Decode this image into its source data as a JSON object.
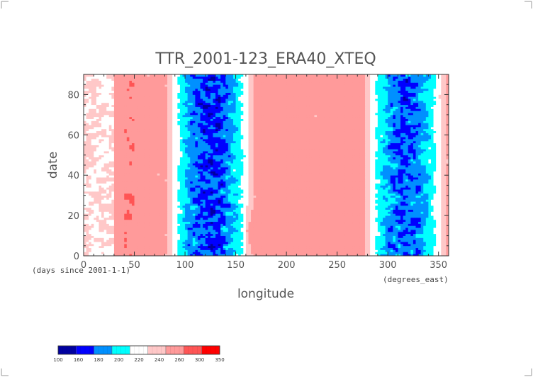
{
  "chart_data": {
    "type": "heatmap",
    "title": "TTR_2001-123_ERA40_XTEQ",
    "xlabel": "longitude",
    "ylabel": "date",
    "x_units": "(degrees_east)",
    "y_units": "(days since 2001-1-1)",
    "xlim": [
      0,
      360
    ],
    "ylim": [
      0,
      90
    ],
    "x_ticks": [
      "0",
      "50",
      "100",
      "150",
      "200",
      "250",
      "300",
      "350"
    ],
    "x_tick_values": [
      0,
      50,
      100,
      150,
      200,
      250,
      300,
      350
    ],
    "y_ticks": [
      "0",
      "20",
      "40",
      "60",
      "80"
    ],
    "y_tick_values": [
      0,
      20,
      40,
      60,
      80
    ],
    "colorbar": {
      "labels": [
        "100",
        "160",
        "180",
        "200",
        "220",
        "240",
        "260",
        "300",
        "350"
      ],
      "colors": [
        "#0000a0",
        "#0000ff",
        "#0090ff",
        "#00ffff",
        "#ffffff",
        "#ffc8c8",
        "#ff9a9a",
        "#ff5555",
        "#ff0000"
      ]
    },
    "pattern": {
      "background_value": 270,
      "convective_bands": [
        {
          "lon_range": [
            80,
            170
          ],
          "typical_value": 190
        },
        {
          "lon_range": [
            275,
            360
          ],
          "typical_value": 195
        }
      ],
      "low_cloud_bands": [
        {
          "lon_range": [
            0,
            30
          ],
          "typical_value": 230
        },
        {
          "lon_range": [
            40,
            50
          ],
          "typical_value": 300
        }
      ]
    }
  }
}
